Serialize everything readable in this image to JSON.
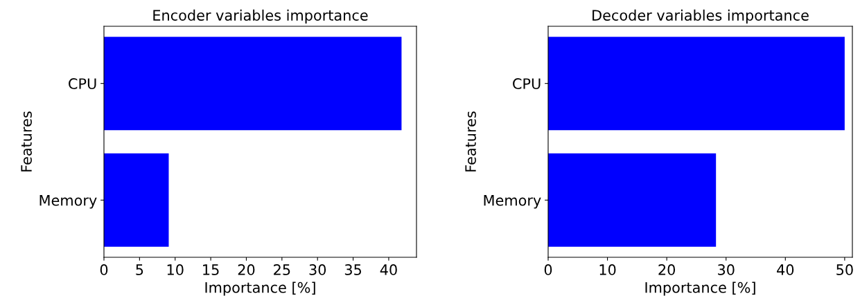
{
  "chart_data": [
    {
      "type": "bar",
      "orientation": "horizontal",
      "title": "Encoder variables importance",
      "xlabel": "Importance [%]",
      "ylabel": "Features",
      "categories": [
        "CPU",
        "Memory"
      ],
      "values": [
        41.8,
        9.1
      ],
      "color": "#0000ff",
      "xlim": [
        0,
        43.9
      ],
      "xticks": [
        0,
        5,
        10,
        15,
        20,
        25,
        30,
        35,
        40
      ],
      "grid": false,
      "legend": false
    },
    {
      "type": "bar",
      "orientation": "horizontal",
      "title": "Decoder variables importance",
      "xlabel": "Importance [%]",
      "ylabel": "Features",
      "categories": [
        "CPU",
        "Memory"
      ],
      "values": [
        50.0,
        28.3
      ],
      "color": "#0000ff",
      "xlim": [
        0,
        51.3
      ],
      "xticks": [
        0,
        10,
        20,
        30,
        40,
        50
      ],
      "grid": false,
      "legend": false
    }
  ]
}
